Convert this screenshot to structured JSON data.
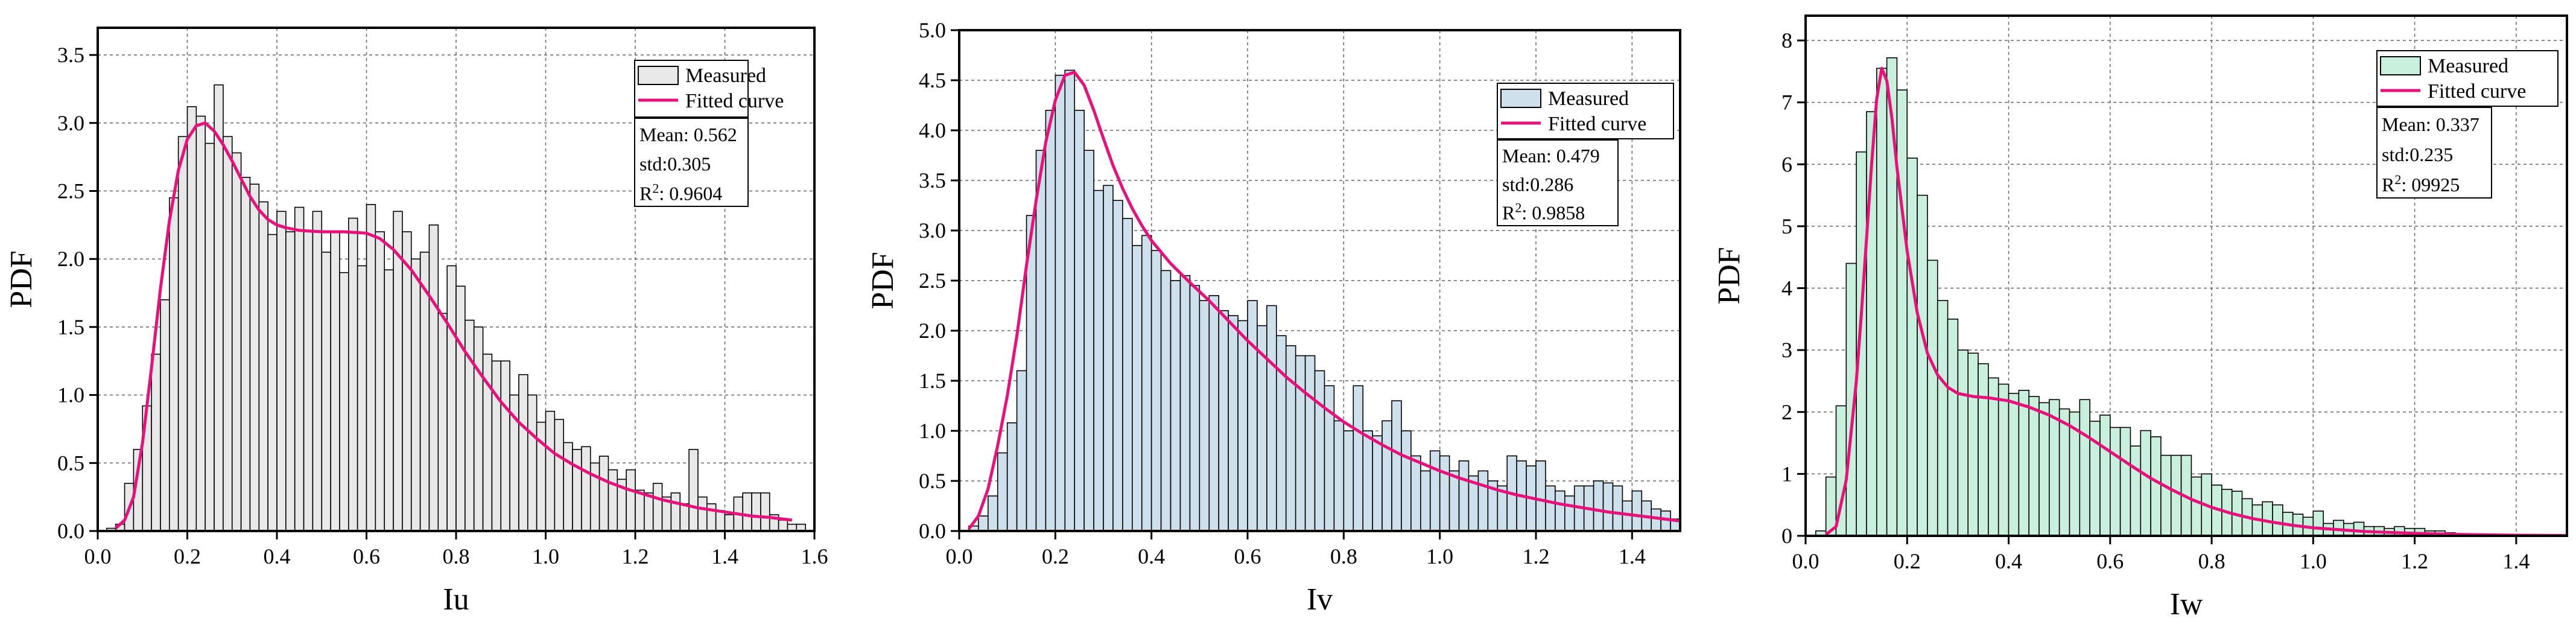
{
  "chart_data": [
    {
      "type": "bar",
      "xlabel": "Iu",
      "ylabel": "PDF",
      "xlim": [
        0,
        1.6
      ],
      "ylim": [
        0,
        3.7
      ],
      "xticks": [
        "0.0",
        "0.2",
        "0.4",
        "0.6",
        "0.8",
        "1.0",
        "1.2",
        "1.4",
        "1.6"
      ],
      "yticks": [
        "0.0",
        "0.5",
        "1.0",
        "1.5",
        "2.0",
        "2.5",
        "3.0",
        "3.5"
      ],
      "bin_width": 0.02,
      "bin_start": 0.02,
      "bar_color": "#e8e8e8",
      "series": [
        {
          "name": "Measured",
          "values": [
            0.02,
            0.05,
            0.35,
            0.6,
            0.92,
            1.3,
            1.7,
            2.45,
            2.9,
            3.12,
            3.05,
            2.85,
            3.28,
            2.9,
            2.78,
            2.6,
            2.55,
            2.42,
            2.18,
            2.35,
            2.2,
            2.38,
            2.2,
            2.35,
            2.05,
            2.2,
            1.9,
            2.3,
            1.95,
            2.4,
            2.2,
            1.92,
            2.35,
            2.2,
            2.0,
            2.05,
            2.25,
            1.6,
            1.95,
            1.8,
            1.55,
            1.5,
            1.3,
            1.25,
            1.25,
            1.0,
            1.15,
            1.0,
            0.8,
            0.88,
            0.82,
            0.65,
            0.6,
            0.62,
            0.5,
            0.55,
            0.45,
            0.38,
            0.45,
            0.3,
            0.28,
            0.35,
            0.25,
            0.28,
            0.2,
            0.6,
            0.25,
            0.2,
            0.15,
            0.12,
            0.25,
            0.28,
            0.28,
            0.28,
            0.12,
            0.08,
            0.05,
            0.05
          ]
        },
        {
          "name": "Fitted curve",
          "color": "#e8107a",
          "points": [
            [
              0.04,
              0.02
            ],
            [
              0.06,
              0.08
            ],
            [
              0.08,
              0.25
            ],
            [
              0.1,
              0.65
            ],
            [
              0.12,
              1.2
            ],
            [
              0.14,
              1.78
            ],
            [
              0.16,
              2.28
            ],
            [
              0.18,
              2.65
            ],
            [
              0.2,
              2.88
            ],
            [
              0.22,
              2.98
            ],
            [
              0.24,
              3.0
            ],
            [
              0.26,
              2.94
            ],
            [
              0.28,
              2.84
            ],
            [
              0.3,
              2.72
            ],
            [
              0.32,
              2.59
            ],
            [
              0.34,
              2.46
            ],
            [
              0.36,
              2.36
            ],
            [
              0.38,
              2.29
            ],
            [
              0.4,
              2.25
            ],
            [
              0.42,
              2.23
            ],
            [
              0.45,
              2.21
            ],
            [
              0.5,
              2.2
            ],
            [
              0.55,
              2.2
            ],
            [
              0.6,
              2.19
            ],
            [
              0.63,
              2.15
            ],
            [
              0.66,
              2.07
            ],
            [
              0.7,
              1.92
            ],
            [
              0.74,
              1.73
            ],
            [
              0.78,
              1.53
            ],
            [
              0.82,
              1.32
            ],
            [
              0.86,
              1.13
            ],
            [
              0.9,
              0.95
            ],
            [
              0.94,
              0.8
            ],
            [
              0.98,
              0.68
            ],
            [
              1.02,
              0.57
            ],
            [
              1.06,
              0.49
            ],
            [
              1.1,
              0.42
            ],
            [
              1.14,
              0.36
            ],
            [
              1.18,
              0.31
            ],
            [
              1.22,
              0.27
            ],
            [
              1.26,
              0.23
            ],
            [
              1.3,
              0.2
            ],
            [
              1.34,
              0.17
            ],
            [
              1.38,
              0.15
            ],
            [
              1.42,
              0.13
            ],
            [
              1.46,
              0.11
            ],
            [
              1.5,
              0.1
            ],
            [
              1.55,
              0.08
            ]
          ]
        }
      ],
      "stats": {
        "mean": "Mean: 0.562",
        "std": "std:0.305",
        "r2_prefix": "R",
        "r2_sup": "2",
        "r2_value": ": 0.9604"
      }
    },
    {
      "type": "bar",
      "xlabel": "Iv",
      "ylabel": "PDF",
      "xlim": [
        0,
        1.5
      ],
      "ylim": [
        0,
        5.0
      ],
      "xticks": [
        "0.0",
        "0.2",
        "0.4",
        "0.6",
        "0.8",
        "1.0",
        "1.2",
        "1.4"
      ],
      "yticks": [
        "0.0",
        "0.5",
        "1.0",
        "1.5",
        "2.0",
        "2.5",
        "3.0",
        "3.5",
        "4.0",
        "4.5",
        "5.0"
      ],
      "bin_width": 0.02,
      "bin_start": 0.02,
      "bar_color": "#cde0ec",
      "series": [
        {
          "name": "Measured",
          "values": [
            0.05,
            0.15,
            0.35,
            0.78,
            1.08,
            1.6,
            3.15,
            3.8,
            4.2,
            4.55,
            4.6,
            4.2,
            3.8,
            3.4,
            3.45,
            3.3,
            3.12,
            2.85,
            2.95,
            2.8,
            2.6,
            2.5,
            2.55,
            2.45,
            2.3,
            2.35,
            2.2,
            2.15,
            2.1,
            2.3,
            2.05,
            2.25,
            1.95,
            1.85,
            1.75,
            1.75,
            1.6,
            1.45,
            1.1,
            1.0,
            1.45,
            1.0,
            0.95,
            1.1,
            1.3,
            1.0,
            0.75,
            0.6,
            0.8,
            0.75,
            0.6,
            0.7,
            0.55,
            0.6,
            0.5,
            0.45,
            0.75,
            0.7,
            0.65,
            0.7,
            0.45,
            0.4,
            0.35,
            0.45,
            0.45,
            0.5,
            0.48,
            0.45,
            0.3,
            0.4,
            0.3,
            0.22,
            0.2,
            0.12
          ]
        },
        {
          "name": "Fitted curve",
          "color": "#e8107a",
          "points": [
            [
              0.02,
              0.02
            ],
            [
              0.04,
              0.15
            ],
            [
              0.06,
              0.42
            ],
            [
              0.08,
              0.85
            ],
            [
              0.1,
              1.35
            ],
            [
              0.12,
              1.95
            ],
            [
              0.14,
              2.65
            ],
            [
              0.16,
              3.3
            ],
            [
              0.18,
              3.88
            ],
            [
              0.2,
              4.3
            ],
            [
              0.22,
              4.55
            ],
            [
              0.24,
              4.58
            ],
            [
              0.26,
              4.45
            ],
            [
              0.28,
              4.2
            ],
            [
              0.3,
              3.92
            ],
            [
              0.32,
              3.65
            ],
            [
              0.34,
              3.42
            ],
            [
              0.36,
              3.22
            ],
            [
              0.38,
              3.05
            ],
            [
              0.4,
              2.9
            ],
            [
              0.44,
              2.67
            ],
            [
              0.48,
              2.48
            ],
            [
              0.52,
              2.3
            ],
            [
              0.56,
              2.1
            ],
            [
              0.6,
              1.9
            ],
            [
              0.64,
              1.72
            ],
            [
              0.68,
              1.54
            ],
            [
              0.72,
              1.38
            ],
            [
              0.76,
              1.23
            ],
            [
              0.8,
              1.09
            ],
            [
              0.84,
              0.97
            ],
            [
              0.88,
              0.86
            ],
            [
              0.92,
              0.76
            ],
            [
              0.96,
              0.68
            ],
            [
              1.0,
              0.6
            ],
            [
              1.04,
              0.53
            ],
            [
              1.08,
              0.47
            ],
            [
              1.12,
              0.41
            ],
            [
              1.16,
              0.36
            ],
            [
              1.2,
              0.32
            ],
            [
              1.25,
              0.27
            ],
            [
              1.3,
              0.23
            ],
            [
              1.35,
              0.19
            ],
            [
              1.4,
              0.16
            ],
            [
              1.45,
              0.13
            ],
            [
              1.5,
              0.1
            ]
          ]
        }
      ],
      "stats": {
        "mean": "Mean: 0.479",
        "std": "std:0.286",
        "r2_prefix": "R",
        "r2_sup": "2",
        "r2_value": ": 0.9858"
      }
    },
    {
      "type": "bar",
      "xlabel": "Iw",
      "ylabel": "PDF",
      "xlim": [
        0,
        1.5
      ],
      "ylim": [
        0,
        8.4
      ],
      "xticks": [
        "0.0",
        "0.2",
        "0.4",
        "0.6",
        "0.8",
        "1.0",
        "1.2",
        "1.4"
      ],
      "yticks": [
        "0",
        "1",
        "2",
        "3",
        "4",
        "5",
        "6",
        "7",
        "8"
      ],
      "bin_width": 0.02,
      "bin_start": 0.02,
      "bar_color": "#c8f0dc",
      "series": [
        {
          "name": "Measured",
          "values": [
            0.08,
            0.95,
            2.1,
            4.4,
            6.2,
            6.85,
            7.55,
            7.72,
            7.2,
            6.1,
            5.5,
            4.45,
            3.8,
            3.5,
            3.0,
            2.95,
            2.78,
            2.55,
            2.45,
            2.3,
            2.35,
            2.25,
            2.15,
            2.2,
            2.05,
            2.0,
            2.2,
            1.85,
            1.95,
            1.75,
            1.75,
            1.45,
            1.7,
            1.6,
            1.3,
            1.3,
            1.3,
            0.95,
            1.0,
            0.82,
            0.75,
            0.72,
            0.6,
            0.5,
            0.55,
            0.5,
            0.38,
            0.35,
            0.3,
            0.4,
            0.2,
            0.25,
            0.2,
            0.22,
            0.15,
            0.15,
            0.12,
            0.15,
            0.12,
            0.12,
            0.08,
            0.08,
            0.05
          ]
        },
        {
          "name": "Fitted curve",
          "color": "#e8107a",
          "points": [
            [
              0.04,
              0.02
            ],
            [
              0.06,
              0.15
            ],
            [
              0.08,
              0.9
            ],
            [
              0.1,
              2.5
            ],
            [
              0.11,
              3.6
            ],
            [
              0.12,
              4.8
            ],
            [
              0.13,
              6.0
            ],
            [
              0.14,
              7.05
            ],
            [
              0.15,
              7.55
            ],
            [
              0.16,
              7.35
            ],
            [
              0.17,
              6.75
            ],
            [
              0.18,
              5.95
            ],
            [
              0.2,
              4.6
            ],
            [
              0.22,
              3.6
            ],
            [
              0.24,
              2.95
            ],
            [
              0.26,
              2.6
            ],
            [
              0.28,
              2.4
            ],
            [
              0.3,
              2.3
            ],
            [
              0.33,
              2.25
            ],
            [
              0.36,
              2.23
            ],
            [
              0.4,
              2.18
            ],
            [
              0.44,
              2.08
            ],
            [
              0.48,
              1.95
            ],
            [
              0.52,
              1.78
            ],
            [
              0.56,
              1.58
            ],
            [
              0.6,
              1.36
            ],
            [
              0.64,
              1.14
            ],
            [
              0.68,
              0.93
            ],
            [
              0.72,
              0.75
            ],
            [
              0.76,
              0.59
            ],
            [
              0.8,
              0.46
            ],
            [
              0.84,
              0.36
            ],
            [
              0.88,
              0.28
            ],
            [
              0.92,
              0.22
            ],
            [
              0.96,
              0.17
            ],
            [
              1.0,
              0.13
            ],
            [
              1.1,
              0.07
            ],
            [
              1.2,
              0.04
            ],
            [
              1.3,
              0.02
            ],
            [
              1.4,
              0.01
            ],
            [
              1.5,
              0.005
            ]
          ]
        }
      ],
      "stats": {
        "mean": "Mean: 0.337",
        "std": "std:0.235",
        "r2_prefix": "R",
        "r2_sup": "2",
        "r2_value": ": 09925"
      }
    }
  ]
}
